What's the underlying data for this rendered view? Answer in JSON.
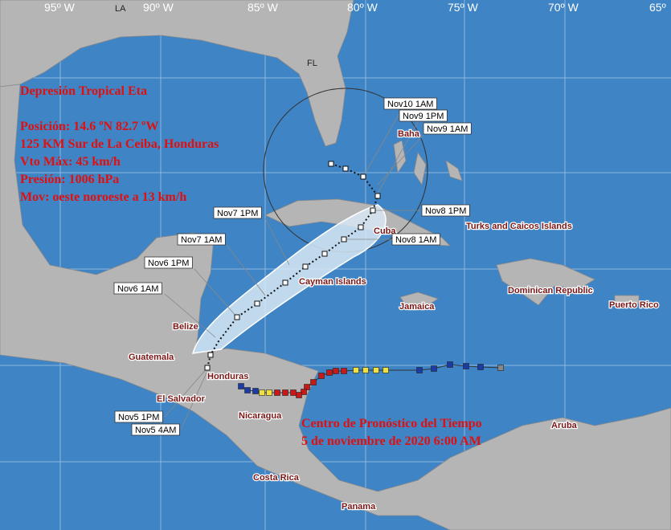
{
  "grid_labels": [
    "95º W",
    "90º W",
    "85º W",
    "80º W",
    "75º W",
    "70º W",
    "65º"
  ],
  "state_labels": [
    "LA",
    "FL"
  ],
  "info": {
    "title": "Depresión Tropical Eta",
    "lines": [
      "Posición: 14.6 ºN 82.7 ºW",
      "125 KM Sur de La Ceiba, Honduras",
      "Vto Máx: 45 km/h",
      "Presión: 1006 hPa",
      "Mov: oeste noroeste a 13 km/h"
    ]
  },
  "forecast_labels": [
    "Nov10 1AM",
    "Nov9 1PM",
    "Nov9 1AM",
    "Nov8 1PM",
    "Nov8 1AM",
    "Nov7 1PM",
    "Nov7 1AM",
    "Nov6 1PM",
    "Nov6 1AM",
    "Nov5 1PM",
    "Nov5 4AM"
  ],
  "places": [
    "Baha",
    "Cuba",
    "Turks and Caicos Islands",
    "Cayman Islands",
    "Dominican Republic",
    "Puerto Rico",
    "Jamaica",
    "Belize",
    "Guatemala",
    "Honduras",
    "El Salvador",
    "Nicaragua",
    "Costa Rica",
    "Panama",
    "Aruba"
  ],
  "credit": [
    "Centro de Pronóstico del Tiempo",
    "5 de noviembre de 2020 6:00 AM"
  ]
}
